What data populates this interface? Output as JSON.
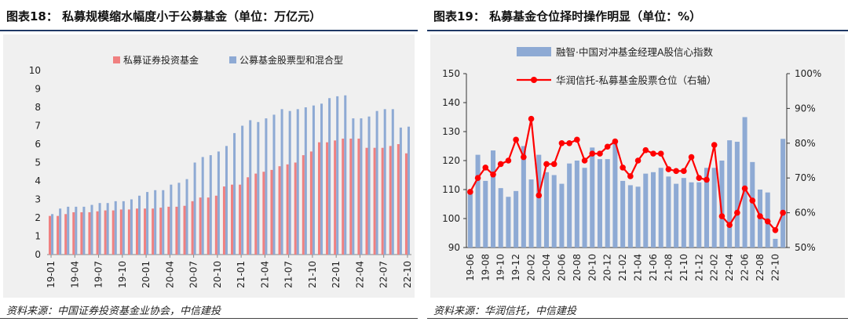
{
  "left_panel": {
    "title": "图表18： 私募规模缩水幅度小于公募基金（单位：万亿元）",
    "source": "资料来源：中国证券投资基金业协会，中信建投"
  },
  "right_panel": {
    "title": "图表19： 私募基金仓位择时操作明显（单位：%）",
    "source": "资料来源：华润信托，中信建投"
  },
  "colors": {
    "private_bar": "#f08080",
    "public_bar": "#8eaad4",
    "confidence_bar": "#8eaad4",
    "position_line": "#ff0000"
  },
  "chart_data": [
    {
      "type": "bar",
      "title": "私募规模缩水幅度小于公募基金（单位：万亿元）",
      "xlabel": "",
      "ylabel": "",
      "ylim": [
        0,
        10
      ],
      "yticks": [
        0,
        1,
        2,
        3,
        4,
        5,
        6,
        7,
        8,
        9,
        10
      ],
      "legend_position": "top",
      "categories": [
        "19-01",
        "19-02",
        "19-03",
        "19-04",
        "19-05",
        "19-06",
        "19-07",
        "19-08",
        "19-09",
        "19-10",
        "19-11",
        "19-12",
        "20-01",
        "20-02",
        "20-03",
        "20-04",
        "20-05",
        "20-06",
        "20-07",
        "20-08",
        "20-09",
        "20-10",
        "20-11",
        "20-12",
        "21-01",
        "21-02",
        "21-03",
        "21-04",
        "21-05",
        "21-06",
        "21-07",
        "21-08",
        "21-09",
        "21-10",
        "21-11",
        "21-12",
        "22-01",
        "22-02",
        "22-03",
        "22-04",
        "22-05",
        "22-06",
        "22-07",
        "22-08",
        "22-09",
        "22-10"
      ],
      "tick_labels": [
        "19-01",
        "19-04",
        "19-07",
        "19-10",
        "20-01",
        "20-04",
        "20-07",
        "20-10",
        "21-01",
        "21-04",
        "21-07",
        "21-10",
        "22-01",
        "22-04",
        "22-07",
        "22-10"
      ],
      "series": [
        {
          "name": "私募证券投资基金",
          "values": [
            2.1,
            2.1,
            2.2,
            2.3,
            2.3,
            2.3,
            2.35,
            2.4,
            2.4,
            2.45,
            2.45,
            2.5,
            2.5,
            2.5,
            2.55,
            2.6,
            2.6,
            2.65,
            2.9,
            3.1,
            3.1,
            3.2,
            3.7,
            3.8,
            3.8,
            4.2,
            4.4,
            4.5,
            4.6,
            4.8,
            4.9,
            5.0,
            5.4,
            5.6,
            6.1,
            6.1,
            6.2,
            6.3,
            6.3,
            6.3,
            5.8,
            5.8,
            5.8,
            5.9,
            6.0,
            5.5
          ]
        },
        {
          "name": "公募基金股票型和混合型",
          "values": [
            2.2,
            2.5,
            2.6,
            2.6,
            2.6,
            2.7,
            2.8,
            2.8,
            2.9,
            2.9,
            3.0,
            3.2,
            3.4,
            3.5,
            3.5,
            3.8,
            3.9,
            4.1,
            5.0,
            5.3,
            5.4,
            5.6,
            5.9,
            6.6,
            7.0,
            7.3,
            7.2,
            7.4,
            7.6,
            7.9,
            7.8,
            7.9,
            8.0,
            8.1,
            8.2,
            8.5,
            8.6,
            8.65,
            7.4,
            7.4,
            7.5,
            7.8,
            7.9,
            7.9,
            6.9,
            6.95
          ]
        }
      ]
    },
    {
      "type": "bar+line",
      "title": "私募基金仓位择时操作明显（单位：%）",
      "xlabel": "",
      "ylabel": "",
      "ylim": [
        90,
        150
      ],
      "yticks": [
        90,
        100,
        110,
        120,
        130,
        140,
        150
      ],
      "y2lim": [
        50,
        100
      ],
      "y2ticks": [
        "50%",
        "60%",
        "70%",
        "80%",
        "90%",
        "100%"
      ],
      "legend_position": "top",
      "categories": [
        "19-06",
        "19-07",
        "19-08",
        "19-09",
        "19-10",
        "19-11",
        "19-12",
        "20-01",
        "20-02",
        "20-03",
        "20-04",
        "20-05",
        "20-06",
        "20-07",
        "20-08",
        "20-09",
        "20-10",
        "20-11",
        "20-12",
        "21-01",
        "21-02",
        "21-03",
        "21-04",
        "21-05",
        "21-06",
        "21-07",
        "21-08",
        "21-09",
        "21-10",
        "21-11",
        "21-12",
        "22-01",
        "22-02",
        "22-03",
        "22-04",
        "22-05",
        "22-06",
        "22-07",
        "22-08",
        "22-09",
        "22-10",
        "22-11"
      ],
      "tick_labels": [
        "19-06",
        "19-08",
        "19-10",
        "19-12",
        "20-02",
        "20-04",
        "20-06",
        "20-08",
        "20-10",
        "20-12",
        "21-02",
        "21-04",
        "21-06",
        "21-08",
        "21-10",
        "21-12",
        "22-02",
        "22-04",
        "22-06",
        "22-08",
        "22-10"
      ],
      "series": [
        {
          "name": "融智·中国对冲基金经理A股信心指数",
          "type": "bar",
          "axis": "left",
          "values": [
            110,
            122,
            113,
            123.5,
            110.5,
            107.5,
            109.5,
            125,
            113.5,
            122,
            116,
            115,
            112,
            119,
            120,
            117.5,
            124.5,
            120.5,
            120.5,
            126,
            113,
            111.5,
            111,
            115.5,
            116,
            117.5,
            114.5,
            112,
            114,
            112.5,
            112.5,
            117.5,
            117.5,
            120,
            127,
            126.5,
            135,
            119.5,
            110,
            109,
            93,
            127.5
          ]
        },
        {
          "name": "华润信托-私募基金股票仓位（右轴）",
          "type": "line",
          "axis": "right",
          "values": [
            66,
            70,
            73,
            71,
            74,
            75,
            81,
            76,
            87,
            65,
            74,
            74,
            80,
            80,
            81,
            75,
            77,
            77,
            79,
            80.5,
            73,
            70.5,
            75,
            78,
            77,
            77,
            72.5,
            72,
            72,
            76,
            70,
            69.5,
            79.5,
            59,
            56.5,
            60,
            67,
            63.5,
            59,
            57.5,
            55,
            60
          ]
        }
      ]
    }
  ]
}
